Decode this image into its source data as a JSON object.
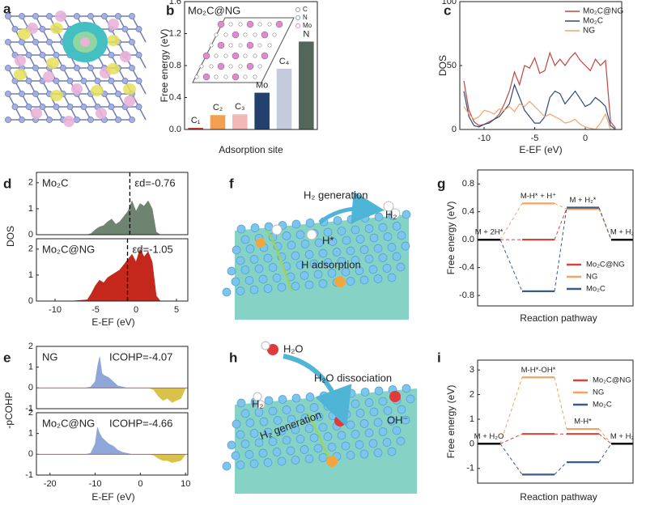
{
  "illustrations": [
    {
      "panel": "a"
    },
    {
      "panel": "f",
      "texts": [
        "H₂ generation",
        "H₂",
        "H*",
        "H adsorption"
      ]
    },
    {
      "panel": "h",
      "texts": [
        "H₂O",
        "H₂O dissociation",
        "H₂",
        "H₂ generation",
        "OH⁻"
      ]
    }
  ],
  "chart_data": [
    {
      "type": "bar",
      "panel": "b",
      "title": "Mo₂C@NG",
      "categories": [
        "C₁",
        "C₂",
        "C₃",
        "Mo",
        "C₄",
        "N"
      ],
      "values": [
        0.02,
        0.18,
        0.19,
        0.46,
        0.76,
        1.1
      ],
      "colors": [
        "#c0392b",
        "#f0a050",
        "#f2b8b8",
        "#23406e",
        "#c3cbdc",
        "#52665a"
      ],
      "x_label": "Adsorption site",
      "y_label": "Free energy (eV)",
      "ylim": [
        0,
        1.6
      ],
      "yticks": [
        {
          "value": 0,
          "label": "0.0"
        },
        0.4,
        0.8,
        1.2,
        1.6
      ],
      "inset_legend": {
        "labels": [
          "C",
          "N",
          "Mo"
        ],
        "colors": [
          "#9a9a9a",
          "#8c9ad6",
          "#e28ad0"
        ]
      }
    },
    {
      "type": "line",
      "panel": "c",
      "x": [
        -12,
        -11.5,
        -11,
        -10.5,
        -10,
        -9.5,
        -9,
        -8.5,
        -8,
        -7.5,
        -7,
        -6.5,
        -6,
        -5.5,
        -5,
        -4.5,
        -4,
        -3.5,
        -3,
        -2.5,
        -2,
        -1.5,
        -1,
        -0.5,
        0,
        0.5,
        1,
        1.5,
        2,
        2.5,
        3
      ],
      "series": [
        {
          "name": "Mo₂C@NG",
          "color": "#c0453f",
          "values": [
            38,
            15,
            6,
            3,
            4,
            6,
            8,
            12,
            20,
            30,
            45,
            35,
            50,
            48,
            56,
            44,
            46,
            60,
            50,
            55,
            50,
            56,
            60,
            54,
            50,
            46,
            55,
            50,
            54,
            6,
            1
          ]
        },
        {
          "name": "Mo₂C",
          "color": "#2e4a7a",
          "values": [
            30,
            10,
            3,
            2,
            4,
            5,
            8,
            10,
            15,
            20,
            35,
            25,
            15,
            10,
            5,
            5,
            10,
            25,
            30,
            28,
            20,
            25,
            30,
            24,
            18,
            20,
            25,
            22,
            18,
            3,
            0
          ]
        },
        {
          "name": "NG",
          "color": "#f2a46a",
          "values": [
            18,
            12,
            8,
            10,
            15,
            14,
            12,
            16,
            15,
            18,
            14,
            20,
            18,
            22,
            18,
            14,
            10,
            12,
            10,
            8,
            5,
            6,
            8,
            4,
            2,
            1,
            0,
            5,
            12,
            0,
            0
          ]
        }
      ],
      "xlim": [
        -12.4,
        3.6
      ],
      "xticks": [
        -10,
        -5,
        0
      ],
      "ylim": [
        0,
        100
      ],
      "yticks": [
        0,
        50,
        100
      ],
      "x_label": "E-EF (eV)",
      "y_label": "DOS",
      "legend": "top-right"
    },
    {
      "type": "area",
      "panel": "d",
      "x": [
        -12,
        -10,
        -8,
        -6,
        -5.5,
        -5,
        -4.5,
        -4,
        -3.5,
        -3,
        -2.5,
        -2,
        -1.5,
        -1,
        -0.5,
        0,
        0.5,
        1,
        1.5,
        2,
        2.5,
        3,
        5
      ],
      "series": [
        {
          "name": "Mo₂C",
          "color": "#6f8470",
          "values": [
            0,
            0,
            0,
            0,
            0.05,
            0.2,
            0.3,
            0.35,
            0.5,
            0.6,
            0.4,
            0.5,
            0.7,
            0.9,
            1.3,
            0.9,
            1.2,
            1.1,
            1.3,
            1.0,
            0.1,
            0,
            0
          ]
        }
      ],
      "xlim": [
        -12.3,
        6.4
      ],
      "ylim": [
        0,
        2.4
      ],
      "yticks": [
        0,
        1,
        2
      ],
      "vline": -0.76,
      "annotation": "εd=-0.76",
      "y_label": "DOS"
    },
    {
      "type": "area",
      "x": [
        -12,
        -10,
        -8,
        -6,
        -5.5,
        -5,
        -4.5,
        -4,
        -3.5,
        -3,
        -2.5,
        -2,
        -1.5,
        -1,
        -0.5,
        0,
        0.5,
        1,
        1.5,
        2,
        2.5,
        3,
        5
      ],
      "series": [
        {
          "name": "Mo₂C@NG",
          "color": "#c4281c",
          "values": [
            0,
            0,
            0,
            0.05,
            0.3,
            0.6,
            0.8,
            0.7,
            0.9,
            1.0,
            1.1,
            1.2,
            1.4,
            1.6,
            1.8,
            1.5,
            2.0,
            1.7,
            1.9,
            1.5,
            0.2,
            0,
            0
          ]
        }
      ],
      "xlim": [
        -12.3,
        6.4
      ],
      "xticks": [
        -10,
        -5,
        0,
        5
      ],
      "ylim": [
        0,
        2.4
      ],
      "yticks": [
        0,
        1,
        2
      ],
      "vline": -1.05,
      "annotation": "εd=-1.05",
      "x_label": "E-EF (eV)"
    },
    {
      "type": "area",
      "panel": "e",
      "x": [
        -22,
        -15,
        -12,
        -11,
        -10,
        -9.5,
        -9,
        -8.5,
        -8,
        -7,
        -6,
        -5,
        -4,
        -3,
        -2,
        0,
        2,
        3,
        4,
        5,
        6,
        7,
        8,
        9,
        10
      ],
      "series": [
        {
          "name": "NG",
          "color": "#8ea6d8",
          "negative_color": "#d9c24a",
          "values": [
            0,
            0,
            0,
            0.05,
            0.3,
            1.0,
            1.5,
            0.7,
            0.6,
            0.5,
            0.3,
            0.1,
            0.05,
            0,
            0,
            0,
            0,
            -0.1,
            -0.4,
            -0.6,
            -0.5,
            -0.7,
            -0.6,
            -0.5,
            0
          ]
        }
      ],
      "xlim": [
        -23,
        10.5
      ],
      "ylim": [
        -1,
        2
      ],
      "yticks": [
        -1,
        0,
        1,
        2
      ],
      "annotation": "ICOHP=-4.07",
      "y_label": "-pCOHP"
    },
    {
      "type": "area",
      "x": [
        -22,
        -15,
        -12,
        -11,
        -10,
        -9.5,
        -9,
        -8.5,
        -8,
        -7,
        -6,
        -5,
        -4,
        -3,
        -2,
        0,
        2,
        3,
        4,
        5,
        6,
        7,
        8,
        9,
        10
      ],
      "series": [
        {
          "name": "Mo₂C@NG",
          "color": "#8ea6d8",
          "negative_color": "#d9c24a",
          "values": [
            0,
            0,
            0,
            0.05,
            0.5,
            1.3,
            1.0,
            0.8,
            0.7,
            0.5,
            0.4,
            0.2,
            0.1,
            0.05,
            0,
            0,
            0,
            -0.05,
            -0.2,
            -0.3,
            -0.3,
            -0.4,
            -0.35,
            -0.3,
            0
          ]
        }
      ],
      "xlim": [
        -23,
        10.5
      ],
      "xticks": [
        -20,
        -10,
        0,
        10
      ],
      "ylim": [
        -1,
        2
      ],
      "yticks": [
        -1,
        0,
        1,
        2
      ],
      "annotation": "ICOHP=-4.66",
      "x_label": "E-EF (eV)"
    },
    {
      "type": "energy-diagram",
      "panel": "g",
      "categories": [
        "M + 2H*",
        "M-H* + H⁺",
        "M + H₂*",
        "M + H₂"
      ],
      "series": [
        {
          "name": "Mo₂C@NG",
          "color": "#d6453d",
          "values": [
            0,
            0,
            0.45,
            0
          ]
        },
        {
          "name": "NG",
          "color": "#f4a261",
          "values": [
            0,
            0.52,
            0.44,
            0
          ]
        },
        {
          "name": "Mo₂C",
          "color": "#3a5a8c",
          "values": [
            0,
            -0.74,
            0.46,
            0
          ]
        }
      ],
      "endpoint_color": "#000000",
      "ylim": [
        -0.95,
        1.0
      ],
      "yticks": [
        -0.8,
        -0.4,
        {
          "value": 0,
          "label": "0.0"
        },
        0.4,
        0.8
      ],
      "x_label": "Reaction pathway",
      "y_label": "Free energy (eV)"
    },
    {
      "type": "energy-diagram",
      "panel": "i",
      "categories": [
        "M + H₂O",
        "M-H*-OH*",
        "M-H*",
        "M + H₂"
      ],
      "series": [
        {
          "name": "Mo₂C@NG",
          "color": "#d6453d",
          "values": [
            0,
            0.4,
            0.4,
            0
          ]
        },
        {
          "name": "NG",
          "color": "#f4a261",
          "values": [
            0,
            2.7,
            0.6,
            0
          ]
        },
        {
          "name": "Mo₂C",
          "color": "#3a5a8c",
          "values": [
            0,
            -1.25,
            -0.75,
            0
          ]
        }
      ],
      "endpoint_color": "#000000",
      "ylim": [
        -1.6,
        3.4
      ],
      "yticks": [
        -1,
        0,
        1,
        2,
        3
      ],
      "x_label": "Reaction pathway",
      "y_label": "Free energy (eV)"
    }
  ]
}
